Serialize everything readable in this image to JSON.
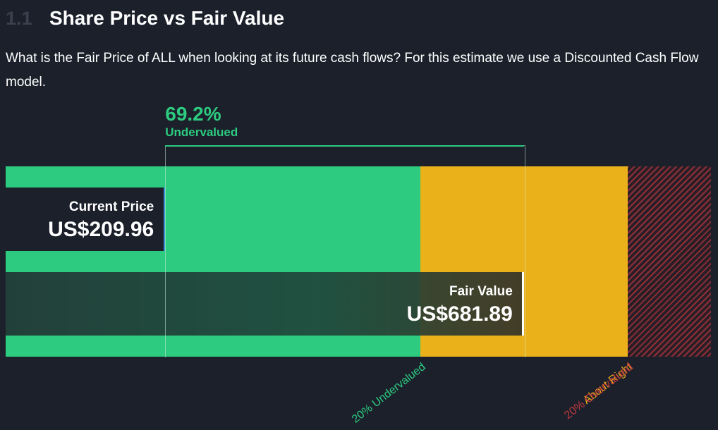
{
  "section": {
    "number": "1.1",
    "title": "Share Price vs Fair Value"
  },
  "description": "What is the Fair Price of ALL when looking at its future cash flows? For this estimate we use a Discounted Cash Flow model.",
  "chart_data": {
    "type": "bar",
    "currency": "US$",
    "current_price": {
      "label": "Current Price",
      "value": 209.96,
      "display": "US$209.96"
    },
    "fair_value": {
      "label": "Fair Value",
      "value": 681.89,
      "display": "US$681.89"
    },
    "discount": {
      "percent": "69.2%",
      "label": "Undervalued"
    },
    "zones": [
      {
        "name": "20% Undervalued",
        "from": 0,
        "to": 545.51,
        "color": "#2dcb80"
      },
      {
        "name": "About Right",
        "from": 545.51,
        "to": 818.27,
        "color": "#ebb11a"
      },
      {
        "name": "20% Overvalued",
        "from": 818.27,
        "to": 928,
        "color": "#c0393f"
      }
    ],
    "xlim": [
      0,
      928
    ]
  }
}
